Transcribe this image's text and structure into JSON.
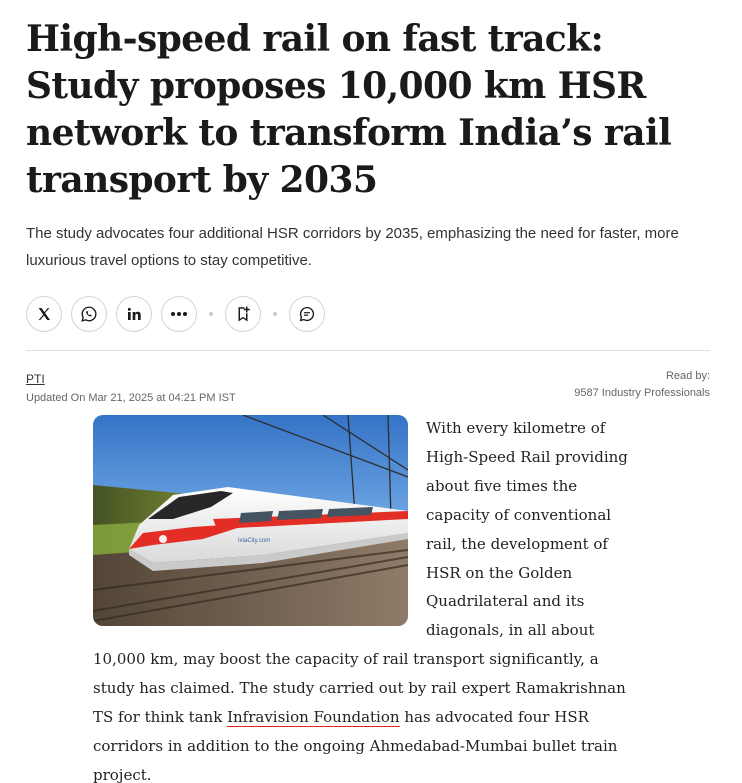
{
  "article": {
    "headline": "High-speed rail on fast track: Study proposes 10,000 km HSR network to transform India’s rail transport by 2035",
    "summary": "The study advocates four additional HSR corridors by 2035, emphasizing the need for faster, more luxurious travel options to stay competitive.",
    "share": {
      "icons": [
        "x-icon",
        "whatsapp-icon",
        "linkedin-icon",
        "more-icon",
        "bookmark-icon",
        "comment-icon"
      ]
    },
    "byline": {
      "author": "PTI",
      "updated": "Updated On Mar 21, 2025 at 04:21 PM IST",
      "read_by_label": "Read by:",
      "read_by_count": "9587 Industry Professionals"
    },
    "image": {
      "caption_text": "",
      "train_livery_text": "IxiaCity.com",
      "colors": {
        "accent": "#e2231a"
      }
    },
    "body": {
      "part1": "With every kilometre of High-Speed Rail providing about five times the capacity of conventional rail, the development of HSR on the Golden Quadrilateral and its diagonals, in all about 10,000 km, may boost the capacity of rail transport significantly, a study has claimed. The study carried out by rail expert Ramakrishnan TS for think tank ",
      "link_text": "Infravision Foundation",
      "part2": " has advocated four HSR corridors in addition to the ongoing Ahmedabad-Mumbai bullet train project."
    }
  }
}
